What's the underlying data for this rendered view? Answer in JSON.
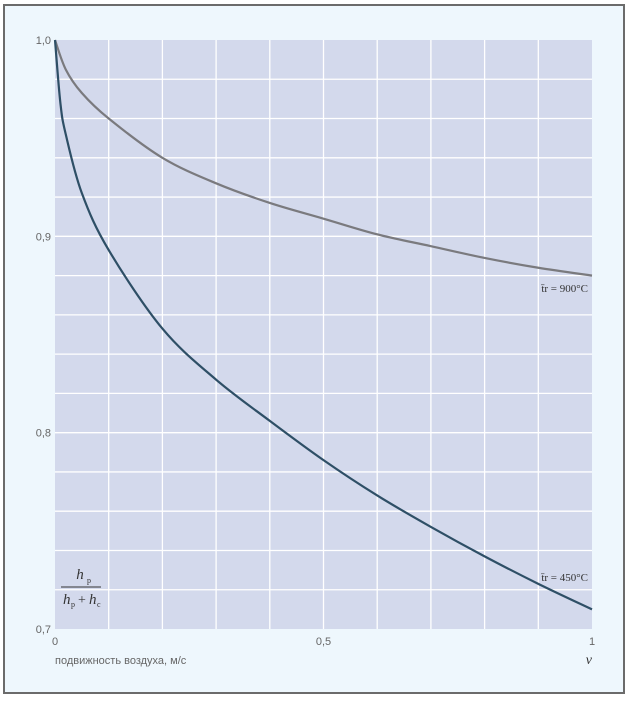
{
  "chart_data": {
    "type": "line",
    "xlabel": "подвижность воздуха, м/с",
    "x_symbol": "v",
    "ylabel": {
      "numerator": "h",
      "numerator_sub": "р",
      "denominator_a": "h",
      "denominator_a_sub": "р",
      "denominator_b": "h",
      "denominator_b_sub": "с"
    },
    "xlim": [
      0,
      1
    ],
    "ylim": [
      0.7,
      1.0
    ],
    "x_ticks": [
      {
        "v": 0,
        "label": "0"
      },
      {
        "v": 0.5,
        "label": "0,5"
      },
      {
        "v": 1,
        "label": "1"
      }
    ],
    "y_ticks": [
      {
        "v": 1.0,
        "label": "1,0"
      },
      {
        "v": 0.9,
        "label": "0,9"
      },
      {
        "v": 0.8,
        "label": "0,8"
      },
      {
        "v": 0.7,
        "label": "0,7"
      }
    ],
    "grid": true,
    "x_grid_step": 0.1,
    "y_grid_step": 0.02,
    "colors": {
      "plot_bg": "#d3d9ec",
      "grid": "#ffffff"
    },
    "series": [
      {
        "name": "t = 900°C",
        "label": "t̄r = 900°C",
        "label_main": "t̄",
        "label_sub": "r",
        "label_rest": " = 900°C",
        "color": "#7a7a7e",
        "x": [
          0,
          0.02,
          0.05,
          0.1,
          0.2,
          0.3,
          0.4,
          0.5,
          0.6,
          0.7,
          0.8,
          0.9,
          1.0
        ],
        "y": [
          1.0,
          0.985,
          0.973,
          0.96,
          0.94,
          0.927,
          0.917,
          0.909,
          0.901,
          0.895,
          0.889,
          0.884,
          0.88
        ]
      },
      {
        "name": "t = 450°C",
        "label": "t̄r = 450°C",
        "label_main": "t̄",
        "label_sub": "r",
        "label_rest": " = 450°C",
        "color": "#2e4f66",
        "x": [
          0,
          0.01,
          0.02,
          0.05,
          0.1,
          0.2,
          0.3,
          0.4,
          0.5,
          0.6,
          0.7,
          0.8,
          0.9,
          1.0
        ],
        "y": [
          1.0,
          0.968,
          0.952,
          0.922,
          0.893,
          0.853,
          0.827,
          0.806,
          0.786,
          0.768,
          0.752,
          0.737,
          0.723,
          0.71
        ]
      }
    ]
  }
}
